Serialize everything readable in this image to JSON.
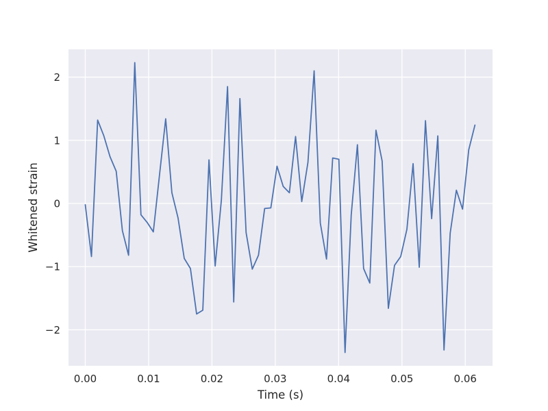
{
  "chart_data": {
    "type": "line",
    "title": "",
    "xlabel": "Time (s)",
    "ylabel": "Whitened strain",
    "xlim": [
      -0.00265,
      0.0643
    ],
    "ylim": [
      -2.57,
      2.44
    ],
    "xticks": [
      0.0,
      0.01,
      0.02,
      0.03,
      0.04,
      0.05,
      0.06
    ],
    "xtick_labels": [
      "0.00",
      "0.01",
      "0.02",
      "0.03",
      "0.04",
      "0.05",
      "0.06"
    ],
    "yticks": [
      -2,
      -1,
      0,
      1,
      2
    ],
    "ytick_labels": [
      "−2",
      "−1",
      "0",
      "1",
      "2"
    ],
    "grid": true,
    "background_color": "#eaeaf2",
    "grid_color": "#ffffff",
    "line_color": "#4c72b0",
    "x": [
      0.0,
      0.000977,
      0.001953,
      0.00293,
      0.003906,
      0.004883,
      0.005859,
      0.006836,
      0.007813,
      0.008789,
      0.009766,
      0.010742,
      0.011719,
      0.012695,
      0.013672,
      0.014648,
      0.015625,
      0.016602,
      0.017578,
      0.018555,
      0.019531,
      0.020508,
      0.021484,
      0.022461,
      0.023438,
      0.024414,
      0.025391,
      0.026367,
      0.027344,
      0.02832,
      0.029297,
      0.030273,
      0.03125,
      0.032227,
      0.033203,
      0.03418,
      0.035156,
      0.036133,
      0.037109,
      0.038086,
      0.039063,
      0.040039,
      0.041016,
      0.041992,
      0.042969,
      0.043945,
      0.044922,
      0.045898,
      0.046875,
      0.047852,
      0.048828,
      0.049805,
      0.050781,
      0.051758,
      0.052734,
      0.053711,
      0.054688,
      0.055664,
      0.056641,
      0.057617,
      0.058594,
      0.05957,
      0.060547,
      0.061523
    ],
    "y": [
      -0.02,
      -0.84,
      1.32,
      1.07,
      0.74,
      0.51,
      -0.43,
      -0.82,
      2.23,
      -0.18,
      -0.3,
      -0.45,
      0.45,
      1.34,
      0.17,
      -0.23,
      -0.87,
      -1.03,
      -1.75,
      -1.69,
      0.69,
      -0.99,
      0.05,
      1.85,
      -1.56,
      1.66,
      -0.46,
      -1.04,
      -0.82,
      -0.08,
      -0.07,
      0.59,
      0.27,
      0.17,
      1.06,
      0.03,
      0.65,
      2.1,
      -0.31,
      -0.88,
      0.72,
      0.7,
      -2.36,
      -0.18,
      0.93,
      -1.03,
      -1.26,
      1.16,
      0.67,
      -1.66,
      -0.98,
      -0.84,
      -0.41,
      0.63,
      -1.01,
      1.31,
      -0.24,
      1.07,
      -2.32,
      -0.47,
      0.21,
      -0.09,
      0.85,
      1.24
    ]
  }
}
